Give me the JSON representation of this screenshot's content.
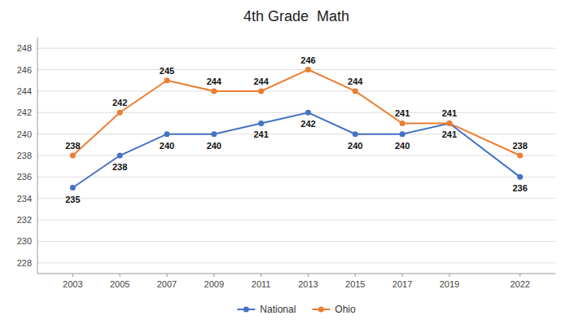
{
  "chart_data": {
    "type": "line",
    "title": "4th Grade  Math",
    "x": [
      2003,
      2005,
      2007,
      2009,
      2011,
      2013,
      2015,
      2017,
      2019,
      2022
    ],
    "xlim": [
      2001.5,
      2023.5
    ],
    "xticks": [
      2003,
      2005,
      2007,
      2009,
      2011,
      2013,
      2015,
      2017,
      2019,
      2022
    ],
    "ylim": [
      227,
      249
    ],
    "yticks": [
      228,
      230,
      232,
      234,
      236,
      238,
      240,
      242,
      244,
      246,
      248
    ],
    "grid": true,
    "legend": "bottom",
    "data_labels": true,
    "marker": "circle",
    "series": [
      {
        "name": "National",
        "color": "#4472C4",
        "values": [
          235,
          238,
          240,
          240,
          241,
          242,
          240,
          240,
          241,
          236
        ]
      },
      {
        "name": "Ohio",
        "color": "#ED7D31",
        "values": [
          238,
          242,
          245,
          244,
          244,
          246,
          244,
          241,
          241,
          238
        ]
      }
    ]
  }
}
